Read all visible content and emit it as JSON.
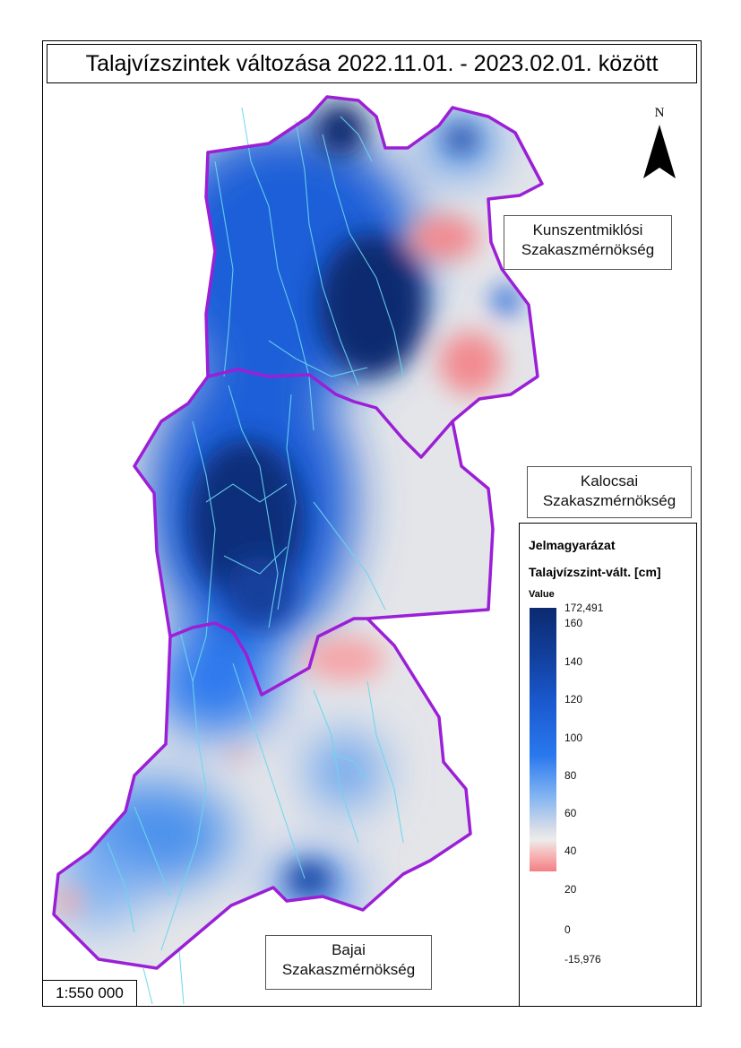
{
  "title": "Talajvízszintek változása 2022.11.01. - 2023.02.01. között",
  "regions": {
    "kunszentmiklos": [
      "Kunszentmiklósi",
      "Szakaszmérnökség"
    ],
    "kalocsa": [
      "Kalocsai",
      "Szakaszmérnökség"
    ],
    "baja": [
      "Bajai",
      "Szakaszmérnökség"
    ]
  },
  "north_arrow": {
    "label": "N",
    "icon": "north-arrow-icon"
  },
  "legend": {
    "title": "Jelmagyarázat",
    "subtitle": "Talajvízszint-vált. [cm]",
    "value_label": "Value",
    "max_label": "172,491",
    "min_label": "-15,976",
    "ticks": [
      "160",
      "140",
      "120",
      "100",
      "80",
      "60",
      "40",
      "20",
      "0"
    ]
  },
  "scale": "1:550 000",
  "colors": {
    "boundary": "#9b1fd6",
    "rivers": "#69d7f0",
    "high": "#0b2a6f",
    "mid": "#2a78ee",
    "neutral": "#e6e6e8",
    "low": "#f27f84"
  }
}
